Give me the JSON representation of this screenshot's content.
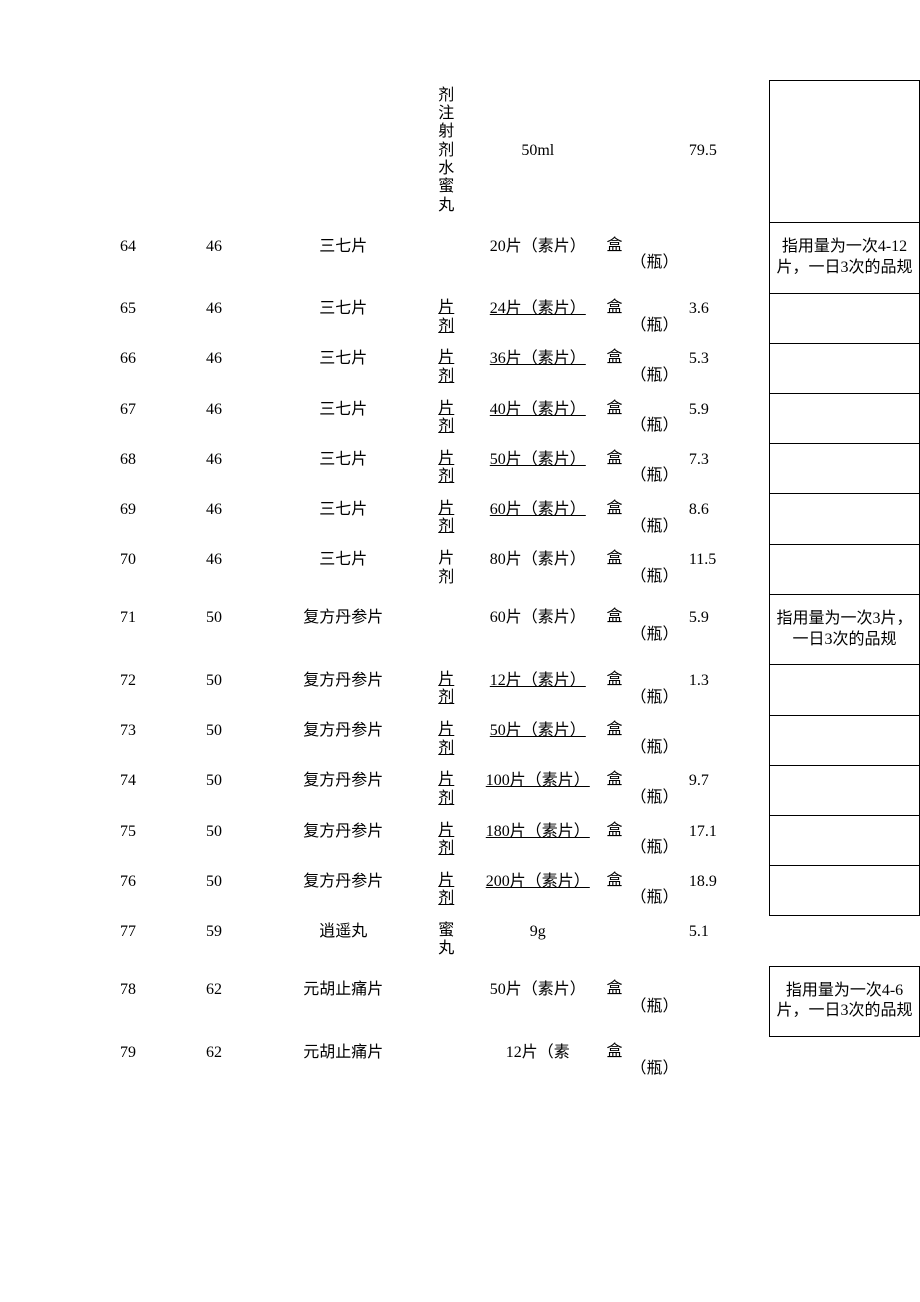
{
  "toprow": {
    "form": "剂注射剂水蜜丸",
    "spec": "50ml",
    "price": "79.5"
  },
  "rows": [
    {
      "seq": "64",
      "code": "46",
      "name": "三七片",
      "form": "",
      "spec": "20片（素片）",
      "specUnderline": false,
      "unit": "盒（瓶）",
      "price": "",
      "note": "指用量为一次4-12片，一日3次的品规",
      "noteBorder": true,
      "tall": true
    },
    {
      "seq": "65",
      "code": "46",
      "name": "三七片",
      "form": "片剂",
      "spec": "24片（素片）",
      "specUnderline": true,
      "unit": "盒（瓶）",
      "price": "3.6",
      "note": "",
      "noteBorder": true
    },
    {
      "seq": "66",
      "code": "46",
      "name": "三七片",
      "form": "片剂",
      "spec": "36片（素片）",
      "specUnderline": true,
      "unit": "盒（瓶）",
      "price": "5.3",
      "note": "",
      "noteBorder": true
    },
    {
      "seq": "67",
      "code": "46",
      "name": "三七片",
      "form": "片剂",
      "spec": "40片（素片）",
      "specUnderline": true,
      "unit": "盒（瓶）",
      "price": "5.9",
      "note": "",
      "noteBorder": true
    },
    {
      "seq": "68",
      "code": "46",
      "name": "三七片",
      "form": "片剂",
      "spec": "50片（素片）",
      "specUnderline": true,
      "unit": "盒（瓶）",
      "price": "7.3",
      "note": "",
      "noteBorder": true
    },
    {
      "seq": "69",
      "code": "46",
      "name": "三七片",
      "form": "片剂",
      "spec": "60片（素片）",
      "specUnderline": true,
      "unit": "盒（瓶）",
      "price": "8.6",
      "note": "",
      "noteBorder": true
    },
    {
      "seq": "70",
      "code": "46",
      "name": "三七片",
      "form": "片剂",
      "spec": "80片（素片）",
      "specUnderline": false,
      "unit": "盒（瓶）",
      "price": "11.5",
      "note": "",
      "noteBorder": true
    },
    {
      "seq": "71",
      "code": "50",
      "name": "复方丹参片",
      "form": "",
      "spec": "60片（素片）",
      "specUnderline": false,
      "unit": "盒（瓶）",
      "price": "5.9",
      "note": "指用量为一次3片，一日3次的品规",
      "noteBorder": true,
      "tall": true
    },
    {
      "seq": "72",
      "code": "50",
      "name": "复方丹参片",
      "form": "片剂",
      "spec": "12片（素片）",
      "specUnderline": true,
      "unit": "盒（瓶）",
      "price": "1.3",
      "note": "",
      "noteBorder": true
    },
    {
      "seq": "73",
      "code": "50",
      "name": "复方丹参片",
      "form": "片剂",
      "spec": "50片（素片）",
      "specUnderline": true,
      "unit": "盒（瓶）",
      "price": "",
      "note": "",
      "noteBorder": true
    },
    {
      "seq": "74",
      "code": "50",
      "name": "复方丹参片",
      "form": "片剂",
      "spec": "100片（素片）",
      "specUnderline": true,
      "unit": "盒（瓶）",
      "price": "9.7",
      "note": "",
      "noteBorder": true
    },
    {
      "seq": "75",
      "code": "50",
      "name": "复方丹参片",
      "form": "片剂",
      "spec": "180片（素片）",
      "specUnderline": true,
      "unit": "盒（瓶）",
      "price": "17.1",
      "note": "",
      "noteBorder": true
    },
    {
      "seq": "76",
      "code": "50",
      "name": "复方丹参片",
      "form": "片剂",
      "spec": "200片（素片）",
      "specUnderline": true,
      "unit": "盒（瓶）",
      "price": "18.9",
      "note": "",
      "noteBorder": true
    },
    {
      "seq": "77",
      "code": "59",
      "name": "逍遥丸",
      "form": "蜜丸",
      "spec": "9g",
      "specUnderline": false,
      "unit": "",
      "price": "5.1",
      "note": "",
      "noteBorder": false
    },
    {
      "seq": "78",
      "code": "62",
      "name": "元胡止痛片",
      "form": "",
      "spec": "50片（素片）",
      "specUnderline": false,
      "unit": "盒（瓶）",
      "price": "",
      "note": "指用量为一次4-6片，一日3次的品规",
      "noteBorder": true,
      "tall": true
    },
    {
      "seq": "79",
      "code": "62",
      "name": "元胡止痛片",
      "form": "",
      "spec": "12片（素",
      "specUnderline": false,
      "unit": "盒（瓶）",
      "price": "",
      "note": "",
      "noteBorder": false
    }
  ]
}
